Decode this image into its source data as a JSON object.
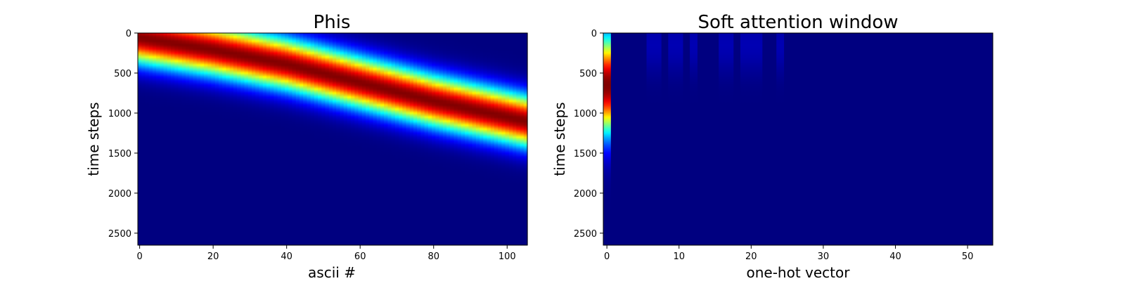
{
  "colormap": "jet",
  "chart_data": [
    {
      "type": "heatmap",
      "title": "Phis",
      "xlabel": "ascii #",
      "ylabel": "time steps",
      "x_range": [
        -0.5,
        105.5
      ],
      "y_range": [
        2650,
        0
      ],
      "xticks": [
        0,
        20,
        40,
        60,
        80,
        100
      ],
      "yticks": [
        0,
        500,
        1000,
        1500,
        2000,
        2500
      ],
      "grid": false,
      "value_range": [
        0,
        1
      ],
      "pattern": "diagonal gaussian band: peak time step increases linearly with ascii index",
      "band_center": [
        {
          "x": 0,
          "y": 60
        },
        {
          "x": 20,
          "y": 210
        },
        {
          "x": 40,
          "y": 390
        },
        {
          "x": 60,
          "y": 620
        },
        {
          "x": 80,
          "y": 850
        },
        {
          "x": 105,
          "y": 1100
        }
      ],
      "band_width_time_steps": 220
    },
    {
      "type": "heatmap",
      "title": "Soft attention window",
      "xlabel": "one-hot vector",
      "ylabel": "time steps",
      "x_range": [
        -0.5,
        53.5
      ],
      "y_range": [
        2650,
        0
      ],
      "xticks": [
        0,
        10,
        20,
        30,
        40,
        50
      ],
      "yticks": [
        0,
        500,
        1000,
        1500,
        2000,
        2500
      ],
      "grid": false,
      "value_range": [
        0,
        1
      ],
      "pattern": "single active column at index 0 peaking near time step 650, with faint activity in columns 6-24 near the top",
      "active_column": 0,
      "active_peak_time_step": 650,
      "active_width_time_steps": 420,
      "faint_columns": [
        6,
        7,
        9,
        10,
        12,
        16,
        17,
        19,
        20,
        21,
        24
      ]
    }
  ]
}
